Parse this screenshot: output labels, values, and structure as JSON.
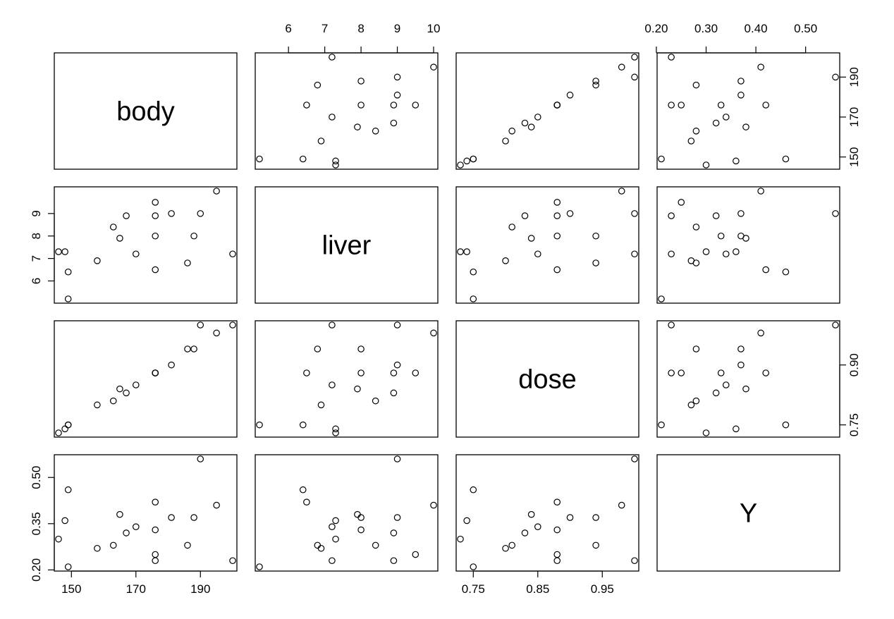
{
  "chart_data": {
    "type": "scatter",
    "kind": "pairs-scatterplot-matrix",
    "variables": [
      "body",
      "liver",
      "dose",
      "Y"
    ],
    "ranges": {
      "body": [
        146,
        200
      ],
      "liver": [
        5.2,
        10.0
      ],
      "dose": [
        0.73,
        1.0
      ],
      "Y": [
        0.21,
        0.56
      ]
    },
    "ticks": {
      "body": [
        150,
        170,
        190
      ],
      "liver": [
        6,
        7,
        8,
        9,
        10
      ],
      "dose": [
        0.75,
        0.9
      ],
      "Y": [
        0.2,
        0.3,
        0.4,
        0.5
      ]
    },
    "tick_labels": {
      "bottom": {
        "0": [
          "150",
          "170",
          "190"
        ],
        "2": [
          "0.75",
          "0.85",
          "0.95"
        ]
      },
      "top": {
        "1": [
          "6",
          "7",
          "8",
          "9",
          "10"
        ],
        "3": [
          "0.20",
          "0.30",
          "0.40",
          "0.50"
        ]
      },
      "left": {
        "1": [
          "6",
          "7",
          "8",
          "9"
        ],
        "3": [
          "0.20",
          "0.35",
          "0.50"
        ]
      },
      "right": {
        "0": [
          "150",
          "170",
          "190"
        ],
        "2": [
          "0.75",
          "0.90"
        ]
      }
    },
    "points": [
      {
        "body": 176,
        "liver": 6.5,
        "dose": 0.88,
        "Y": 0.42
      },
      {
        "body": 176,
        "liver": 9.5,
        "dose": 0.88,
        "Y": 0.25
      },
      {
        "body": 190,
        "liver": 9.0,
        "dose": 1.0,
        "Y": 0.56
      },
      {
        "body": 176,
        "liver": 8.9,
        "dose": 0.88,
        "Y": 0.23
      },
      {
        "body": 200,
        "liver": 7.2,
        "dose": 1.0,
        "Y": 0.23
      },
      {
        "body": 167,
        "liver": 8.9,
        "dose": 0.83,
        "Y": 0.32
      },
      {
        "body": 188,
        "liver": 8.0,
        "dose": 0.94,
        "Y": 0.37
      },
      {
        "body": 195,
        "liver": 10.0,
        "dose": 0.98,
        "Y": 0.41
      },
      {
        "body": 176,
        "liver": 8.0,
        "dose": 0.88,
        "Y": 0.33
      },
      {
        "body": 165,
        "liver": 7.9,
        "dose": 0.84,
        "Y": 0.38
      },
      {
        "body": 158,
        "liver": 6.9,
        "dose": 0.8,
        "Y": 0.27
      },
      {
        "body": 148,
        "liver": 7.3,
        "dose": 0.74,
        "Y": 0.36
      },
      {
        "body": 149,
        "liver": 5.2,
        "dose": 0.75,
        "Y": 0.21
      },
      {
        "body": 163,
        "liver": 8.4,
        "dose": 0.81,
        "Y": 0.28
      },
      {
        "body": 170,
        "liver": 7.2,
        "dose": 0.85,
        "Y": 0.34
      },
      {
        "body": 186,
        "liver": 6.8,
        "dose": 0.94,
        "Y": 0.28
      },
      {
        "body": 146,
        "liver": 7.3,
        "dose": 0.73,
        "Y": 0.3
      },
      {
        "body": 181,
        "liver": 9.0,
        "dose": 0.9,
        "Y": 0.37
      },
      {
        "body": 149,
        "liver": 6.4,
        "dose": 0.75,
        "Y": 0.46
      }
    ]
  }
}
